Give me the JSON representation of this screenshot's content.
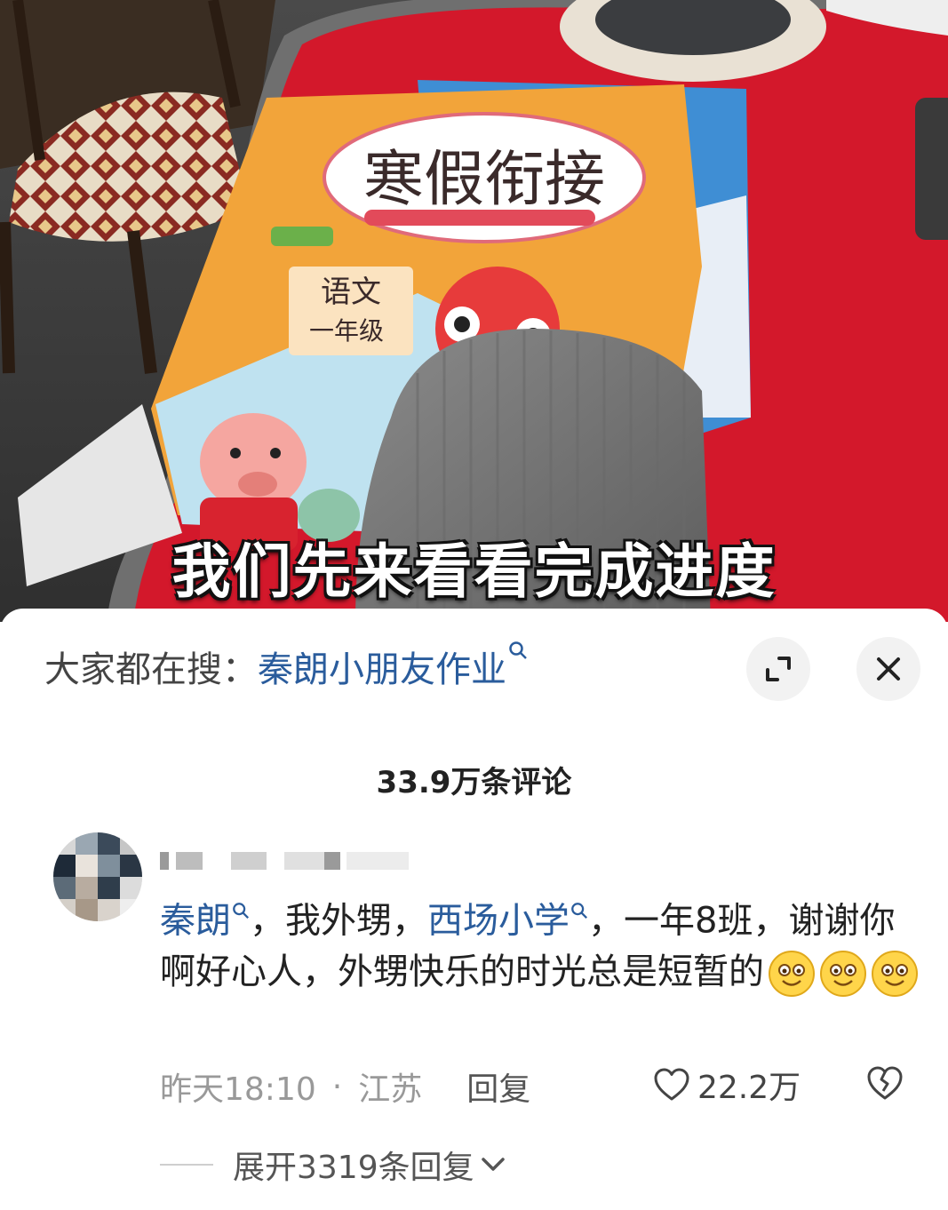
{
  "video": {
    "subtitle": "我们先来看看完成进度",
    "book_title": "寒假衔接",
    "book_subject": "语文",
    "book_grade": "一年级"
  },
  "search_bar": {
    "prefix": "大家都在搜：",
    "term": "秦朗小朋友作业"
  },
  "comments": {
    "count_label": "33.9万条评论",
    "items": [
      {
        "mention_1": "秦朗",
        "text_1": "，我外甥，",
        "mention_2": "西场小学",
        "text_2": "，一年8班，谢谢你啊好心人，外甥快乐的时光总是短暂的",
        "emojis": [
          "smile-emoji",
          "smile-emoji",
          "smile-emoji"
        ],
        "time": "昨天18:10",
        "location": "江苏",
        "reply_label": "回复",
        "likes": "22.2万",
        "expand_label": "展开3319条回复"
      }
    ]
  },
  "colors": {
    "link_blue": "#2a5c9c",
    "table_red": "#d3182b"
  }
}
